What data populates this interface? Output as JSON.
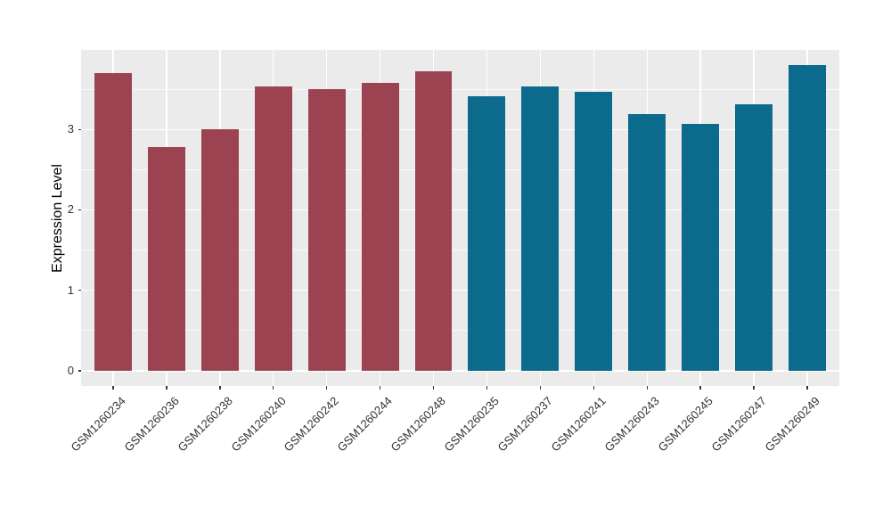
{
  "figure": {
    "background": "#FFFFFF",
    "panel_background": "#EBEBEB",
    "grid_color": "#FFFFFF",
    "tick_color": "#333333",
    "axis_text_color": "#333333"
  },
  "chart_data": {
    "type": "bar",
    "title": "",
    "xlabel": "",
    "ylabel": "Expression Level",
    "categories": [
      "GSM1260234",
      "GSM1260236",
      "GSM1260238",
      "GSM1260240",
      "GSM1260242",
      "GSM1260244",
      "GSM1260248",
      "GSM1260235",
      "GSM1260237",
      "GSM1260241",
      "GSM1260243",
      "GSM1260245",
      "GSM1260247",
      "GSM1260249"
    ],
    "values": [
      3.7,
      2.78,
      3.0,
      3.54,
      3.5,
      3.58,
      3.72,
      3.41,
      3.53,
      3.47,
      3.19,
      3.07,
      3.31,
      3.8
    ],
    "bar_colors": [
      "#9C4352",
      "#9C4352",
      "#9C4352",
      "#9C4352",
      "#9C4352",
      "#9C4352",
      "#9C4352",
      "#0C6A8C",
      "#0C6A8C",
      "#0C6A8C",
      "#0C6A8C",
      "#0C6A8C",
      "#0C6A8C",
      "#0C6A8C"
    ],
    "group_palette": {
      "left_group": "#9C4352",
      "right_group": "#0C6A8C"
    },
    "yticks": [
      0,
      1,
      2,
      3
    ],
    "minor_yticks": [
      0.5,
      1.5,
      2.5,
      3.5
    ],
    "ylim": [
      -0.19,
      3.99
    ],
    "bar_width_fraction": 0.7,
    "grid": true,
    "legend": "none",
    "x_label_angle_deg": 45
  }
}
